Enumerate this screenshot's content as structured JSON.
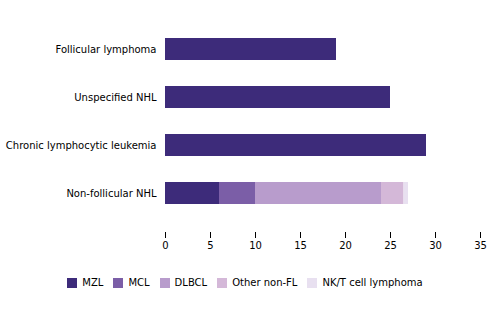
{
  "chart_data": {
    "type": "bar",
    "orientation": "horizontal",
    "stacked": true,
    "categories": [
      "Non-follicular NHL",
      "Chronic lymphocytic leukemia",
      "Unspecified NHL",
      "Follicular lymphoma"
    ],
    "series": [
      {
        "name": "MZL",
        "color": "#3d2b7a",
        "values": [
          6.0,
          29.0,
          25.0,
          19.0
        ]
      },
      {
        "name": "MCL",
        "color": "#7b5ea7",
        "values": [
          4.0,
          0,
          0,
          0
        ]
      },
      {
        "name": "DLBCL",
        "color": "#b89ccc",
        "values": [
          14.0,
          0,
          0,
          0
        ]
      },
      {
        "name": "Other non-FL",
        "color": "#d4b8d8",
        "values": [
          2.5,
          0,
          0,
          0
        ]
      },
      {
        "name": "NK/T cell lymphoma",
        "color": "#e8e0f0",
        "values": [
          0.5,
          0,
          0,
          0
        ]
      }
    ],
    "xlim": [
      0,
      35
    ],
    "xticks": [
      0,
      5,
      10,
      15,
      20,
      25,
      30,
      35
    ],
    "legend": "bottom"
  }
}
